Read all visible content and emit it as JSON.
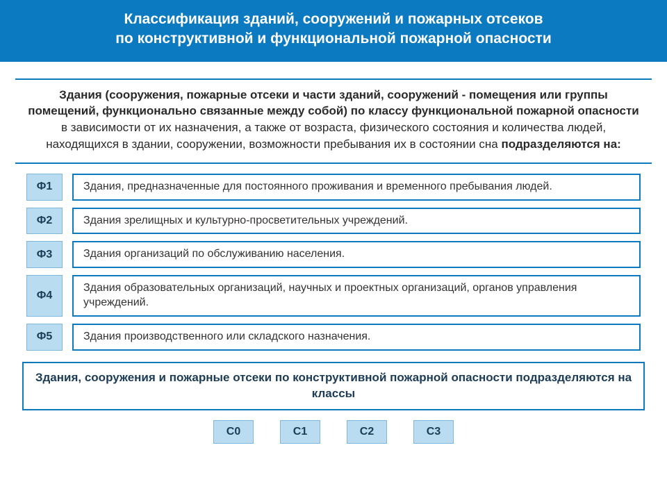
{
  "colors": {
    "header_bg": "#0b7ac0",
    "header_text": "#ffffff",
    "intro_border": "#0b7ac0",
    "intro_text": "#2a2a2a",
    "badge_bg": "#b9dcf1",
    "badge_border": "#7fb8de",
    "badge_text": "#1c3b57",
    "desc_border": "#0b7ac0",
    "desc_text": "#333333",
    "footer_border": "#0b7ac0",
    "footer_text": "#1c3b57"
  },
  "header": {
    "line1": "Классификация зданий, сооружений и пожарных отсеков",
    "line2": "по конструктивной и функциональной пожарной опасности"
  },
  "intro": {
    "bold_lead": "Здания (сооружения, пожарные отсеки и части зданий, сооружений - помещения или группы помещений, функционально связанные между собой) по классу функциональной пожарной опасности",
    "rest1": " в зависимости от их назначения, а также от возраста, физического состояния и количества людей, находящихся в здании, сооружении, возможности пребывания их в состоянии сна ",
    "bold_tail": "подразделяются на:"
  },
  "f_items": [
    {
      "code": "Ф1",
      "text": "Здания, предназначенные для постоянного проживания и временного пребывания людей."
    },
    {
      "code": "Ф2",
      "text": "Здания зрелищных и культурно-просветительных учреждений."
    },
    {
      "code": "Ф3",
      "text": "Здания организаций по обслуживанию населения."
    },
    {
      "code": "Ф4",
      "text": "Здания образовательных организаций, научных и проектных организаций, органов управления учреждений."
    },
    {
      "code": "Ф5",
      "text": "Здания производственного или складского назначения."
    }
  ],
  "footer": {
    "text": "Здания, сооружения и пожарные отсеки по конструктивной пожарной опасности подразделяются на классы"
  },
  "c_items": [
    "С0",
    "С1",
    "С2",
    "С3"
  ]
}
